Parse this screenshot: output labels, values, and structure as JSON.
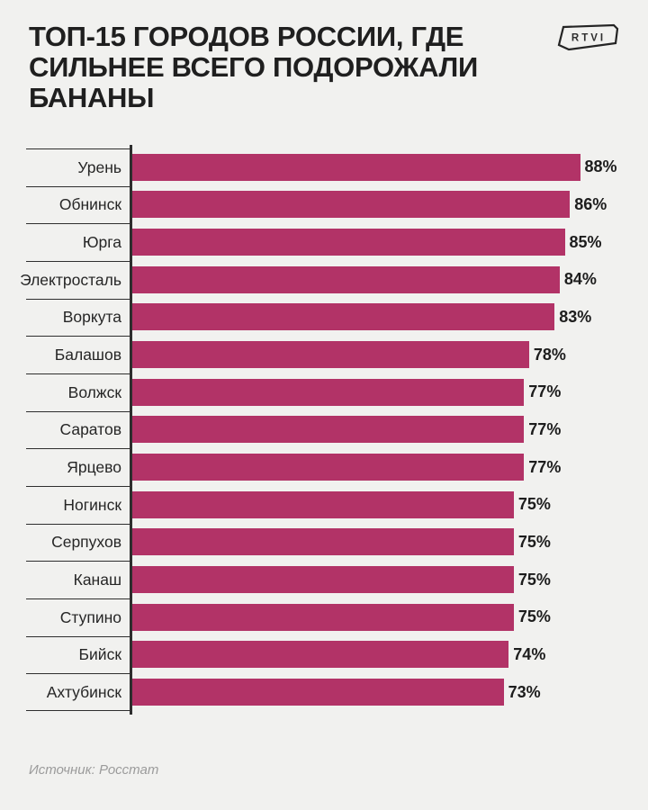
{
  "header": {
    "title_lines": [
      "ТОП-15 ГОРОДОВ РОССИИ, ГДЕ",
      "СИЛЬНЕЕ ВСЕГО ПОДОРОЖАЛИ",
      "БАНАНЫ"
    ],
    "logo_text": "RTVI"
  },
  "footer": {
    "source": "Источник: Росстат"
  },
  "colors": {
    "background": "#F1F1EF",
    "bar": "#B23367",
    "line": "#2E2E2E",
    "text": "#1F1F1F",
    "source_text": "#9B9B9B"
  },
  "chart_data": {
    "type": "bar",
    "orientation": "horizontal",
    "title": "ТОП-15 ГОРОДОВ РОССИИ, ГДЕ СИЛЬНЕЕ ВСЕГО ПОДОРОЖАЛИ БАНАНЫ",
    "categories": [
      "Урень",
      "Обнинск",
      "Юрга",
      "Электросталь",
      "Воркута",
      "Балашов",
      "Волжск",
      "Саратов",
      "Ярцево",
      "Ногинск",
      "Серпухов",
      "Канаш",
      "Ступино",
      "Бийск",
      "Ахтубинск"
    ],
    "values": [
      88,
      86,
      85,
      84,
      83,
      78,
      77,
      77,
      77,
      75,
      75,
      75,
      75,
      74,
      73
    ],
    "value_labels": [
      "88%",
      "86%",
      "85%",
      "84%",
      "83%",
      "78%",
      "77%",
      "77%",
      "77%",
      "75%",
      "75%",
      "75%",
      "75%",
      "74%",
      "73%"
    ],
    "unit": "%",
    "xlim": [
      0,
      88
    ],
    "grid": false,
    "legend": false,
    "source": "Источник: Росстат"
  }
}
